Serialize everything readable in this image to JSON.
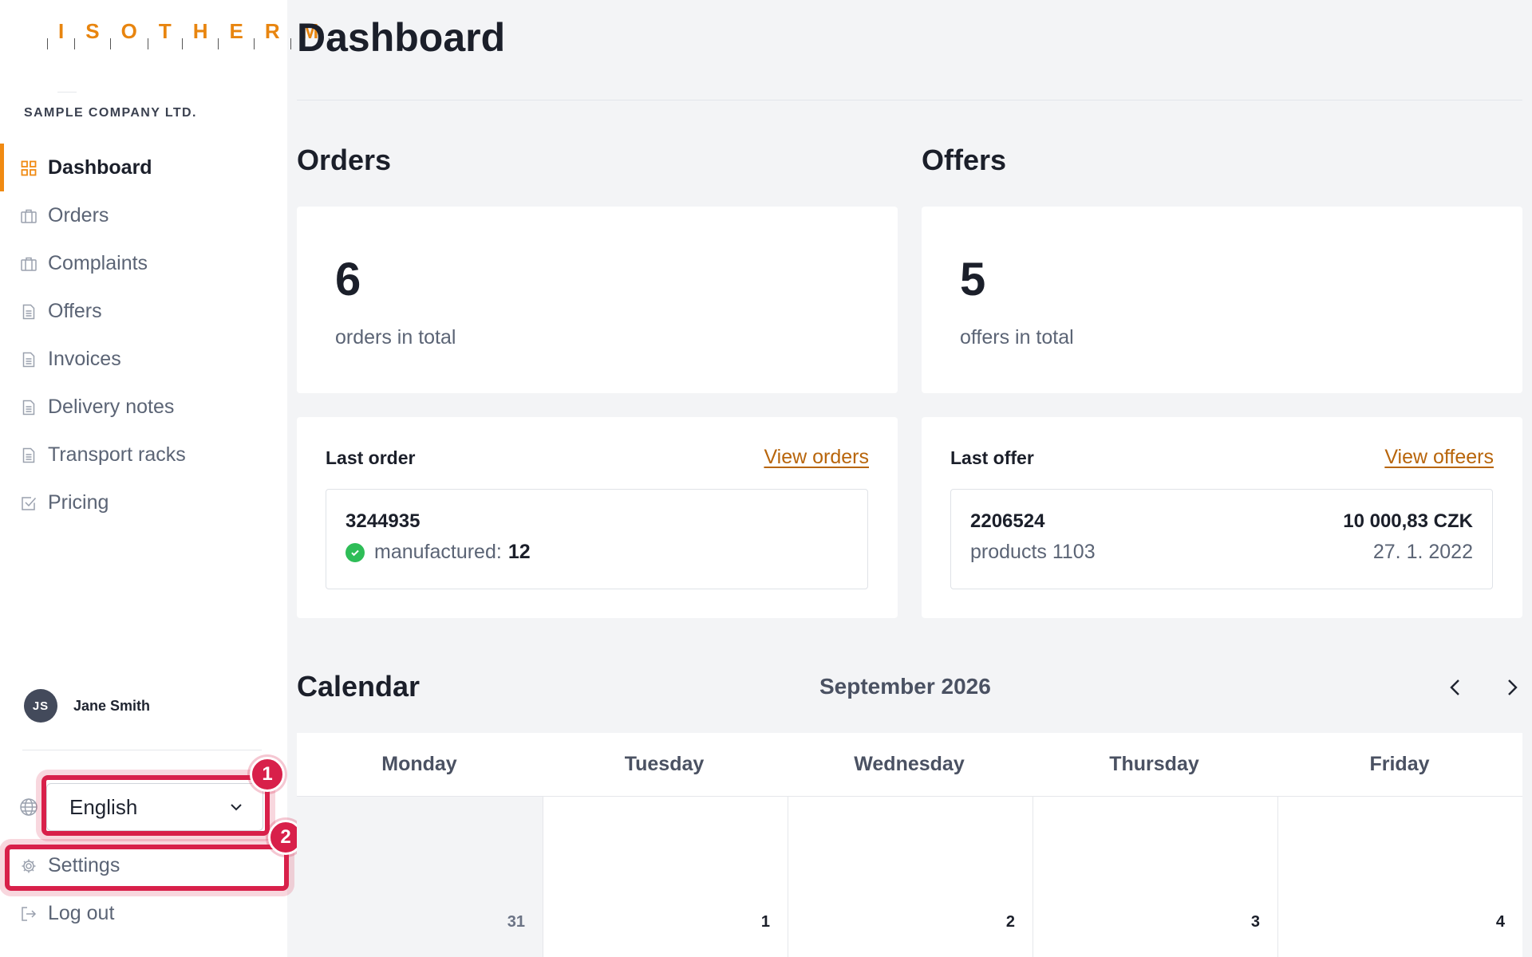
{
  "sidebar": {
    "logo_letters": [
      "I",
      "S",
      "O",
      "T",
      "H",
      "E",
      "R",
      "M"
    ],
    "company": "SAMPLE COMPANY LTD.",
    "nav": [
      {
        "label": "Dashboard",
        "icon": "grid-icon",
        "active": true
      },
      {
        "label": "Orders",
        "icon": "briefcase-icon"
      },
      {
        "label": "Complaints",
        "icon": "briefcase-icon"
      },
      {
        "label": "Offers",
        "icon": "document-icon"
      },
      {
        "label": "Invoices",
        "icon": "document-icon"
      },
      {
        "label": "Delivery notes",
        "icon": "document-icon"
      },
      {
        "label": "Transport racks",
        "icon": "document-icon"
      },
      {
        "label": "Pricing",
        "icon": "checkbox-icon"
      }
    ],
    "user": {
      "initials": "JS",
      "name": "Jane Smith"
    },
    "language": {
      "selected": "English",
      "icon": "globe-icon"
    },
    "settings_label": "Settings",
    "logout_label": "Log out",
    "annotations": [
      "1",
      "2"
    ]
  },
  "main": {
    "title": "Dashboard",
    "orders": {
      "section_title": "Orders",
      "total": "6",
      "total_label": "orders in total",
      "last_heading": "Last order",
      "link": "View orders",
      "last_number": "3244935",
      "status_label": "manufactured:",
      "status_value": "12"
    },
    "offers": {
      "section_title": "Offers",
      "total": "5",
      "total_label": "offers in total",
      "last_heading": "Last offer",
      "link": "View offeers",
      "last_number": "2206524",
      "products": "products 1103",
      "amount": "10 000,83 CZK",
      "date": "27. 1. 2022"
    },
    "calendar": {
      "title": "Calendar",
      "month": "September 2026",
      "days": [
        "Monday",
        "Tuesday",
        "Wednesday",
        "Thursday",
        "Friday"
      ],
      "dates": [
        "31",
        "1",
        "2",
        "3",
        "4"
      ]
    }
  },
  "colors": {
    "accent": "#f08a12",
    "link": "#b8650b",
    "highlight": "#d8204a",
    "success": "#2ebd57"
  }
}
